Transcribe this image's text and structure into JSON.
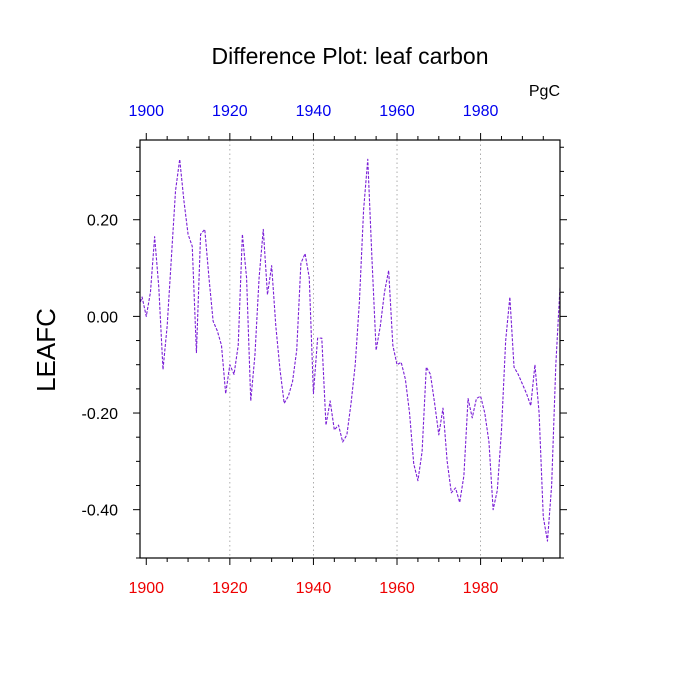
{
  "chart_data": {
    "type": "line",
    "title": "Difference Plot: leaf carbon",
    "units_label": "PgC",
    "ylabel": "LEAFC",
    "xlabel": "",
    "xlim": [
      1898.5,
      1999
    ],
    "ylim": [
      -0.5,
      0.365
    ],
    "x_ticks": [
      1900,
      1920,
      1940,
      1960,
      1980
    ],
    "x_tick_labels_bottom": [
      "1900",
      "1920",
      "1940",
      "1960",
      "1980"
    ],
    "x_tick_labels_top": [
      "1900",
      "1920",
      "1940",
      "1960",
      "1980"
    ],
    "y_ticks": [
      0.2,
      0.0,
      -0.2,
      -0.4
    ],
    "y_tick_labels": [
      "0.20",
      "0.00",
      "-0.20",
      "-0.40"
    ],
    "x_gridlines": [
      1920,
      1940,
      1960,
      1980
    ],
    "colors": {
      "line": "#7a1fd6",
      "top_axis_labels": "#0000ee",
      "bottom_axis_labels": "#ee0000",
      "grid": "#999999",
      "frame": "#000000"
    },
    "series": [
      {
        "name": "LEAFC difference",
        "x": [
          1898.6,
          1899,
          1900,
          1901,
          1902,
          1903,
          1904,
          1905,
          1906,
          1907,
          1908,
          1909,
          1910,
          1911,
          1912,
          1913,
          1914,
          1915,
          1916,
          1917,
          1918,
          1919,
          1920,
          1921,
          1922,
          1923,
          1924,
          1925,
          1926,
          1927,
          1928,
          1929,
          1930,
          1931,
          1932,
          1933,
          1934,
          1935,
          1936,
          1937,
          1938,
          1939,
          1940,
          1941,
          1942,
          1943,
          1944,
          1945,
          1946,
          1947,
          1948,
          1949,
          1950,
          1951,
          1952,
          1953,
          1954,
          1955,
          1956,
          1957,
          1958,
          1959,
          1960,
          1961,
          1962,
          1963,
          1964,
          1965,
          1966,
          1967,
          1968,
          1969,
          1970,
          1971,
          1972,
          1973,
          1974,
          1975,
          1976,
          1977,
          1978,
          1979,
          1980,
          1981,
          1982,
          1983,
          1984,
          1985,
          1986,
          1987,
          1988,
          1989,
          1990,
          1991,
          1992,
          1993,
          1994,
          1995,
          1996,
          1997,
          1998,
          1999
        ],
        "values": [
          0.03,
          0.04,
          0.0,
          0.05,
          0.165,
          0.06,
          -0.11,
          -0.02,
          0.12,
          0.26,
          0.325,
          0.24,
          0.17,
          0.145,
          -0.075,
          0.17,
          0.18,
          0.08,
          -0.01,
          -0.03,
          -0.06,
          -0.16,
          -0.1,
          -0.12,
          -0.06,
          0.17,
          0.08,
          -0.175,
          -0.08,
          0.08,
          0.18,
          0.045,
          0.105,
          -0.02,
          -0.11,
          -0.18,
          -0.165,
          -0.135,
          -0.07,
          0.11,
          0.13,
          0.08,
          -0.16,
          -0.045,
          -0.045,
          -0.225,
          -0.175,
          -0.235,
          -0.225,
          -0.26,
          -0.245,
          -0.18,
          -0.1,
          0.03,
          0.22,
          0.325,
          0.12,
          -0.07,
          -0.02,
          0.05,
          0.095,
          -0.06,
          -0.1,
          -0.095,
          -0.13,
          -0.2,
          -0.305,
          -0.34,
          -0.28,
          -0.105,
          -0.12,
          -0.18,
          -0.245,
          -0.19,
          -0.3,
          -0.365,
          -0.355,
          -0.385,
          -0.33,
          -0.17,
          -0.21,
          -0.17,
          -0.165,
          -0.2,
          -0.26,
          -0.4,
          -0.36,
          -0.235,
          -0.05,
          0.04,
          -0.105,
          -0.12,
          -0.14,
          -0.16,
          -0.185,
          -0.1,
          -0.2,
          -0.415,
          -0.465,
          -0.35,
          -0.1,
          0.06
        ]
      }
    ]
  }
}
